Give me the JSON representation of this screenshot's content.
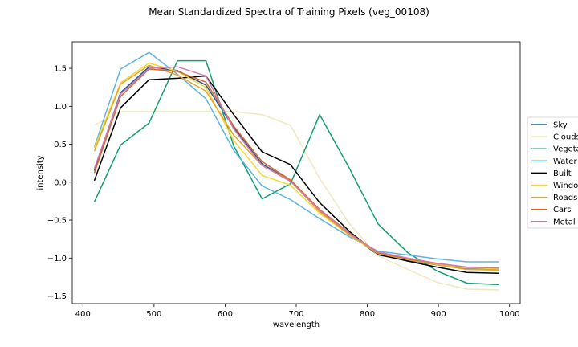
{
  "chart_data": {
    "type": "line",
    "title": "Mean Standardized Spectra of Training Pixels (veg_00108)",
    "xlabel": "wavelength",
    "ylabel": "intensity",
    "xlim": [
      385,
      1015
    ],
    "ylim": [
      -1.6,
      1.85
    ],
    "xticks": [
      400,
      500,
      600,
      700,
      800,
      900,
      1000
    ],
    "yticks": [
      -1.5,
      -1.0,
      -0.5,
      0.0,
      0.5,
      1.0,
      1.5
    ],
    "xtick_labels": [
      "400",
      "500",
      "600",
      "700",
      "800",
      "900",
      "1000"
    ],
    "ytick_labels": [
      "−1.5",
      "−1.0",
      "−0.5",
      "0.0",
      "0.5",
      "1.0",
      "1.5"
    ],
    "grid": false,
    "legend_position": "right, outside plot area",
    "x": [
      416,
      453,
      493,
      533,
      573,
      612,
      652,
      692,
      733,
      775,
      815,
      857,
      898,
      940,
      985
    ],
    "series": [
      {
        "name": "Sky",
        "color": "#1f5a96",
        "values": [
          0.15,
          1.18,
          1.52,
          1.47,
          1.28,
          0.72,
          0.24,
          0.02,
          -0.38,
          -0.68,
          -0.96,
          -1.03,
          -1.09,
          -1.14,
          -1.14
        ]
      },
      {
        "name": "Clouds",
        "color": "#efe8c0",
        "values": [
          0.75,
          0.93,
          0.93,
          0.93,
          0.93,
          0.93,
          0.89,
          0.75,
          0.05,
          -0.55,
          -0.97,
          -1.15,
          -1.32,
          -1.41,
          -1.42
        ]
      },
      {
        "name": "Vegetation",
        "color": "#159e70",
        "values": [
          -0.26,
          0.49,
          0.78,
          1.6,
          1.6,
          0.48,
          -0.22,
          -0.02,
          0.89,
          0.18,
          -0.55,
          -0.93,
          -1.17,
          -1.33,
          -1.35
        ]
      },
      {
        "name": "Water",
        "color": "#5db5e5",
        "values": [
          0.46,
          1.49,
          1.71,
          1.42,
          1.1,
          0.42,
          -0.05,
          -0.23,
          -0.48,
          -0.72,
          -0.91,
          -0.96,
          -1.01,
          -1.05,
          -1.05
        ]
      },
      {
        "name": "Built",
        "color": "#000000",
        "values": [
          0.02,
          0.98,
          1.35,
          1.37,
          1.4,
          0.89,
          0.4,
          0.23,
          -0.27,
          -0.65,
          -0.95,
          -1.04,
          -1.12,
          -1.19,
          -1.2
        ]
      },
      {
        "name": "Windows",
        "color": "#f5d834",
        "values": [
          0.45,
          1.31,
          1.57,
          1.46,
          1.25,
          0.55,
          0.09,
          -0.04,
          -0.41,
          -0.7,
          -0.94,
          -1.02,
          -1.08,
          -1.13,
          -1.14
        ]
      },
      {
        "name": "Roads",
        "color": "#e5a42a",
        "values": [
          0.41,
          1.29,
          1.54,
          1.41,
          1.2,
          0.62,
          0.22,
          0.02,
          -0.39,
          -0.69,
          -0.94,
          -1.02,
          -1.09,
          -1.15,
          -1.16
        ]
      },
      {
        "name": "Cars",
        "color": "#d9682a",
        "values": [
          0.12,
          1.13,
          1.49,
          1.46,
          1.32,
          0.74,
          0.27,
          0.03,
          -0.36,
          -0.67,
          -0.93,
          -1.01,
          -1.07,
          -1.12,
          -1.13
        ]
      },
      {
        "name": "Metal",
        "color": "#cc7cb4",
        "values": [
          0.18,
          1.16,
          1.5,
          1.52,
          1.4,
          0.7,
          0.22,
          0.01,
          -0.37,
          -0.68,
          -0.92,
          -1.0,
          -1.07,
          -1.12,
          -1.13
        ]
      }
    ]
  }
}
